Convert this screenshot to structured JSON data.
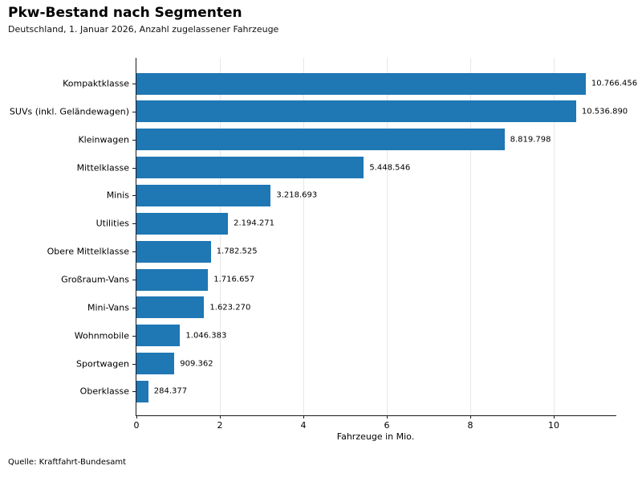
{
  "header": {
    "title": "Pkw-Bestand nach Segmenten",
    "subtitle": "Deutschland, 1. Januar 2026, Anzahl zugelassener Fahrzeuge"
  },
  "footer": {
    "source": "Quelle: Kraftfahrt-Bundesamt"
  },
  "chart_data": {
    "type": "bar",
    "orientation": "horizontal",
    "title": "Pkw-Bestand nach Segmenten",
    "subtitle": "Deutschland, 1. Januar 2026, Anzahl zugelassener Fahrzeuge",
    "xlabel": "Fahrzeuge in Mio.",
    "categories": [
      "Kompaktklasse",
      "SUVs (inkl. Geländewagen)",
      "Kleinwagen",
      "Mittelklasse",
      "Minis",
      "Utilities",
      "Obere Mittelklasse",
      "Großraum-Vans",
      "Mini-Vans",
      "Wohnmobile",
      "Sportwagen",
      "Oberklasse"
    ],
    "values": [
      10766456,
      10536890,
      8819798,
      5448546,
      3218693,
      2194271,
      1782525,
      1716657,
      1623270,
      1046383,
      909362,
      284377
    ],
    "value_labels": [
      "10.766.456",
      "10.536.890",
      "8.819.798",
      "5.448.546",
      "3.218.693",
      "2.194.271",
      "1.782.525",
      "1.716.657",
      "1.623.270",
      "1.046.383",
      "909.362",
      "284.377"
    ],
    "xticks": [
      0,
      2,
      4,
      6,
      8,
      10
    ],
    "xlim": [
      0,
      11.5
    ],
    "grid": true,
    "legend": false,
    "bar_color": "#1f77b4",
    "grid_color": "#e7e7e7",
    "axis_color": "#1a1a1a",
    "source": "Quelle: Kraftfahrt-Bundesamt"
  }
}
